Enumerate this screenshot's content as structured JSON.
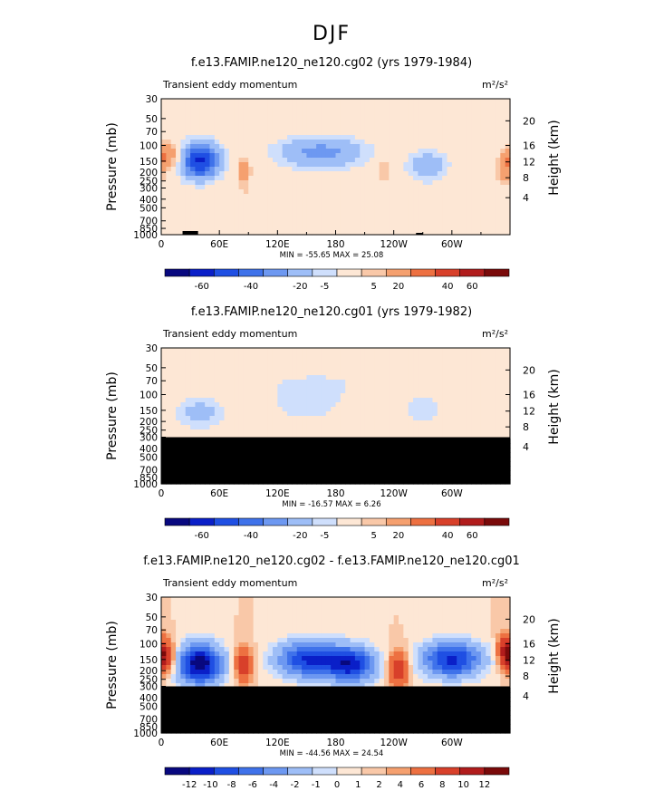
{
  "figure": {
    "title": "DJF"
  },
  "palettes": {
    "full": [
      "#08087f",
      "#0a1fc8",
      "#1f4fe3",
      "#3f72ea",
      "#6d98f1",
      "#9ebef7",
      "#cfdffc",
      "#fde7d5",
      "#f9c8a8",
      "#f5a06f",
      "#ed7041",
      "#d8402a",
      "#b11c1c",
      "#7a0a0a"
    ],
    "diff": [
      "#08087f",
      "#0a1fc8",
      "#1f4fe3",
      "#3f72ea",
      "#6d98f1",
      "#9ebef7",
      "#cfdffc",
      "#fde7d5",
      "#f9c8a8",
      "#f5a06f",
      "#ed7041",
      "#d8402a",
      "#b11c1c",
      "#7a0a0a"
    ]
  },
  "chart_data": [
    {
      "type": "heatmap",
      "title": "f.e13.FAMIP.ne120_ne120.cg02 (yrs 1979-1984)",
      "left_label": "Transient eddy momentum",
      "units": "m²/s²",
      "ylabel": "Pressure (mb)",
      "ylabel_right": "Height (km)",
      "pressure_ticks": [
        "30",
        "50",
        "70",
        "100",
        "150",
        "200",
        "250",
        "300",
        "400",
        "500",
        "700",
        "850",
        "1000"
      ],
      "height_ticks": [
        "20",
        "16",
        "12",
        "8",
        "4"
      ],
      "x_ticks": [
        "0",
        "60E",
        "120E",
        "180",
        "120W",
        "60W"
      ],
      "stats": "MIN = -55.65   MAX =  25.08",
      "colorbar_labels": [
        "-60",
        "-40",
        "-20",
        "-5",
        "5",
        "20",
        "40",
        "60"
      ],
      "palette": "full",
      "missing_below_pressure": null
    },
    {
      "type": "heatmap",
      "title": "f.e13.FAMIP.ne120_ne120.cg01 (yrs 1979-1982)",
      "left_label": "Transient eddy momentum",
      "units": "m²/s²",
      "ylabel": "Pressure (mb)",
      "ylabel_right": "Height (km)",
      "pressure_ticks": [
        "30",
        "50",
        "70",
        "100",
        "150",
        "200",
        "250",
        "300",
        "400",
        "500",
        "700",
        "850",
        "1000"
      ],
      "height_ticks": [
        "20",
        "16",
        "12",
        "8",
        "4"
      ],
      "x_ticks": [
        "0",
        "60E",
        "120E",
        "180",
        "120W",
        "60W"
      ],
      "stats": "MIN = -16.57   MAX =   6.26",
      "colorbar_labels": [
        "-60",
        "-40",
        "-20",
        "-5",
        "5",
        "20",
        "40",
        "60"
      ],
      "palette": "full",
      "missing_below_pressure": 300
    },
    {
      "type": "heatmap",
      "title": "f.e13.FAMIP.ne120_ne120.cg02 - f.e13.FAMIP.ne120_ne120.cg01",
      "left_label": "Transient eddy momentum",
      "units": "m²/s²",
      "ylabel": "Pressure (mb)",
      "ylabel_right": "Height (km)",
      "pressure_ticks": [
        "30",
        "50",
        "70",
        "100",
        "150",
        "200",
        "250",
        "300",
        "400",
        "500",
        "700",
        "850",
        "1000"
      ],
      "height_ticks": [
        "20",
        "16",
        "12",
        "8",
        "4"
      ],
      "x_ticks": [
        "0",
        "60E",
        "120E",
        "180",
        "120W",
        "60W"
      ],
      "stats": "MIN = -44.56   MAX =  24.54",
      "colorbar_labels": [
        "-12",
        "-10",
        "-8",
        "-6",
        "-4",
        "-2",
        "-1",
        "0",
        "1",
        "2",
        "4",
        "6",
        "8",
        "10",
        "12"
      ],
      "palette": "diff",
      "missing_below_pressure": 300
    }
  ]
}
